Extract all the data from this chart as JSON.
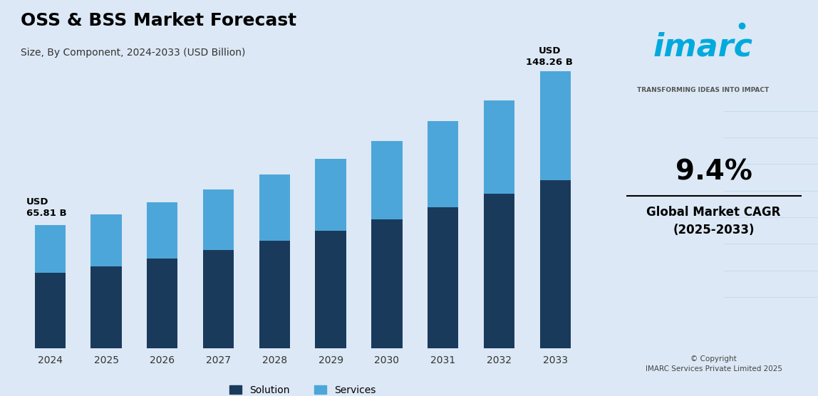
{
  "title": "OSS & BSS Market Forecast",
  "subtitle": "Size, By Component, 2024-2033 (USD Billion)",
  "years": [
    2024,
    2025,
    2026,
    2027,
    2028,
    2029,
    2030,
    2031,
    2032,
    2033
  ],
  "solution": [
    40.5,
    44.0,
    48.0,
    52.5,
    57.5,
    63.0,
    69.0,
    75.5,
    82.5,
    90.0
  ],
  "services": [
    25.31,
    27.5,
    30.0,
    32.5,
    35.5,
    38.5,
    42.0,
    46.0,
    50.0,
    58.26
  ],
  "total_first": "USD\n65.81 B",
  "total_last": "USD\n148.26 B",
  "solution_color": "#1a3a5c",
  "services_color": "#4da6d9",
  "bg_color": "#dce8f5",
  "right_panel_color": "#f0f5fb",
  "legend_solution": "Solution",
  "legend_services": "Services",
  "cagr_value": "9.4%",
  "cagr_label": "Global Market CAGR\n(2025-2033)",
  "copyright": "© Copyright\nIMARC Services Private Limited 2025",
  "ylim": [
    0,
    165
  ]
}
